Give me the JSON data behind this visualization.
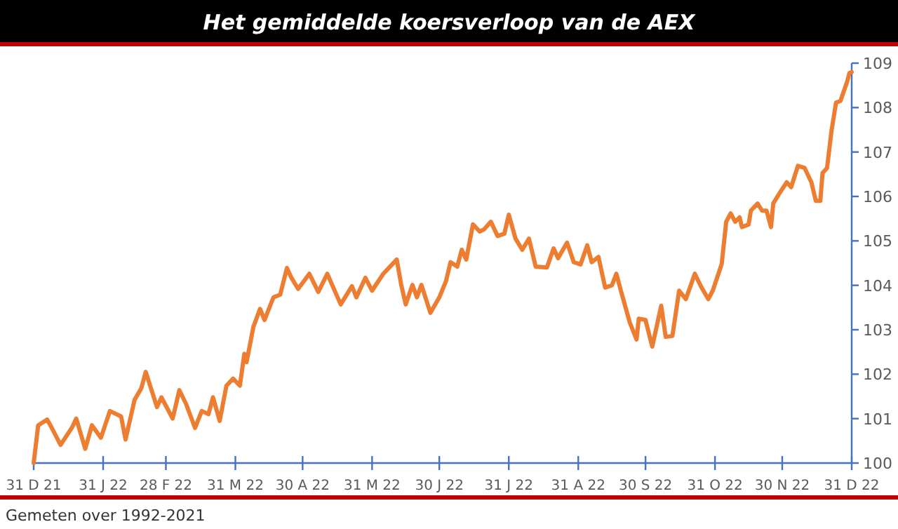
{
  "chart_data": {
    "type": "line",
    "title": "Het gemiddelde koersverloop van de AEX",
    "annotations": [
      "Gemeten over 1992-2021"
    ],
    "xlim": [
      "2021-12-31",
      "2022-12-31"
    ],
    "xticks": [
      {
        "value": "2021-12-31",
        "label": "31 D 21"
      },
      {
        "value": "2022-01-31",
        "label": "31 J 22"
      },
      {
        "value": "2022-02-28",
        "label": "28 F 22"
      },
      {
        "value": "2022-03-31",
        "label": "31 M 22"
      },
      {
        "value": "2022-04-30",
        "label": "30 A 22"
      },
      {
        "value": "2022-05-31",
        "label": "31 M 22"
      },
      {
        "value": "2022-06-30",
        "label": "30 J 22"
      },
      {
        "value": "2022-07-31",
        "label": "31 J 22"
      },
      {
        "value": "2022-08-31",
        "label": "31 A 22"
      },
      {
        "value": "2022-09-30",
        "label": "30 S 22"
      },
      {
        "value": "2022-10-31",
        "label": "31 O 22"
      },
      {
        "value": "2022-11-30",
        "label": "30 N 22"
      },
      {
        "value": "2022-12-31",
        "label": "31 D 22"
      }
    ],
    "ylim": [
      100,
      109
    ],
    "yticks": [
      100,
      101,
      102,
      103,
      104,
      105,
      106,
      107,
      108,
      109
    ],
    "grid": false,
    "marker": "none",
    "line_style": "solid",
    "x": [
      "2021-12-31",
      "2022-01-02",
      "2022-01-06",
      "2022-01-08",
      "2022-01-12",
      "2022-01-17",
      "2022-01-19",
      "2022-01-23",
      "2022-01-26",
      "2022-01-30",
      "2022-02-03",
      "2022-02-08",
      "2022-02-10",
      "2022-02-14",
      "2022-02-17",
      "2022-02-19",
      "2022-02-24",
      "2022-02-26",
      "2022-03-03",
      "2022-03-06",
      "2022-03-09",
      "2022-03-13",
      "2022-03-16",
      "2022-03-19",
      "2022-03-21",
      "2022-03-24",
      "2022-03-27",
      "2022-03-30",
      "2022-04-02",
      "2022-04-04",
      "2022-04-05",
      "2022-04-08",
      "2022-04-11",
      "2022-04-13",
      "2022-04-17",
      "2022-04-20",
      "2022-04-23",
      "2022-04-25",
      "2022-04-28",
      "2022-05-03",
      "2022-05-07",
      "2022-05-11",
      "2022-05-17",
      "2022-05-22",
      "2022-05-24",
      "2022-05-28",
      "2022-05-31",
      "2022-06-05",
      "2022-06-08",
      "2022-06-11",
      "2022-06-13",
      "2022-06-15",
      "2022-06-18",
      "2022-06-20",
      "2022-06-22",
      "2022-06-26",
      "2022-06-30",
      "2022-07-03",
      "2022-07-05",
      "2022-07-08",
      "2022-07-10",
      "2022-07-12",
      "2022-07-15",
      "2022-07-18",
      "2022-07-20",
      "2022-07-23",
      "2022-07-26",
      "2022-07-29",
      "2022-07-31",
      "2022-08-03",
      "2022-08-06",
      "2022-08-09",
      "2022-08-12",
      "2022-08-17",
      "2022-08-20",
      "2022-08-22",
      "2022-08-26",
      "2022-08-29",
      "2022-09-01",
      "2022-09-04",
      "2022-09-06",
      "2022-09-09",
      "2022-09-12",
      "2022-09-15",
      "2022-09-17",
      "2022-09-19",
      "2022-09-23",
      "2022-09-26",
      "2022-09-27",
      "2022-09-30",
      "2022-10-03",
      "2022-10-07",
      "2022-10-09",
      "2022-10-12",
      "2022-10-15",
      "2022-10-18",
      "2022-10-22",
      "2022-10-25",
      "2022-10-28",
      "2022-10-30",
      "2022-11-03",
      "2022-11-05",
      "2022-11-07",
      "2022-11-09",
      "2022-11-11",
      "2022-11-12",
      "2022-11-15",
      "2022-11-16",
      "2022-11-19",
      "2022-11-21",
      "2022-11-23",
      "2022-11-25",
      "2022-11-26",
      "2022-11-29",
      "2022-12-02",
      "2022-12-04",
      "2022-12-07",
      "2022-12-10",
      "2022-12-13",
      "2022-12-15",
      "2022-12-17",
      "2022-12-18",
      "2022-12-20",
      "2022-12-22",
      "2022-12-24",
      "2022-12-26",
      "2022-12-29",
      "2022-12-30",
      "2022-12-31"
    ],
    "series": [
      {
        "color": "#ed7d31",
        "values": [
          100.0,
          100.85,
          100.98,
          100.8,
          100.41,
          100.79,
          101.0,
          100.32,
          100.85,
          100.57,
          101.17,
          101.05,
          100.53,
          101.42,
          101.68,
          102.05,
          101.26,
          101.48,
          101.0,
          101.64,
          101.33,
          100.79,
          101.17,
          101.1,
          101.48,
          100.95,
          101.74,
          101.9,
          101.74,
          102.46,
          102.27,
          103.06,
          103.47,
          103.22,
          103.73,
          103.79,
          104.39,
          104.17,
          103.92,
          104.26,
          103.85,
          104.26,
          103.57,
          103.98,
          103.73,
          104.17,
          103.88,
          104.26,
          104.42,
          104.58,
          104.01,
          103.57,
          104.01,
          103.73,
          104.01,
          103.38,
          103.73,
          104.1,
          104.52,
          104.42,
          104.8,
          104.58,
          105.37,
          105.21,
          105.26,
          105.43,
          105.11,
          105.16,
          105.59,
          105.05,
          104.8,
          105.05,
          104.42,
          104.4,
          104.83,
          104.61,
          104.96,
          104.52,
          104.47,
          104.9,
          104.52,
          104.64,
          103.95,
          104.0,
          104.26,
          103.88,
          103.16,
          102.78,
          103.25,
          103.22,
          102.62,
          103.54,
          102.84,
          102.86,
          103.88,
          103.69,
          104.26,
          103.95,
          103.69,
          103.88,
          104.48,
          105.43,
          105.62,
          105.43,
          105.53,
          105.31,
          105.37,
          105.68,
          105.84,
          105.68,
          105.68,
          105.31,
          105.84,
          106.09,
          106.32,
          106.21,
          106.69,
          106.64,
          106.32,
          105.9,
          105.9,
          106.53,
          106.64,
          107.48,
          108.11,
          108.15,
          108.59,
          108.78,
          108.8
        ]
      }
    ]
  }
}
